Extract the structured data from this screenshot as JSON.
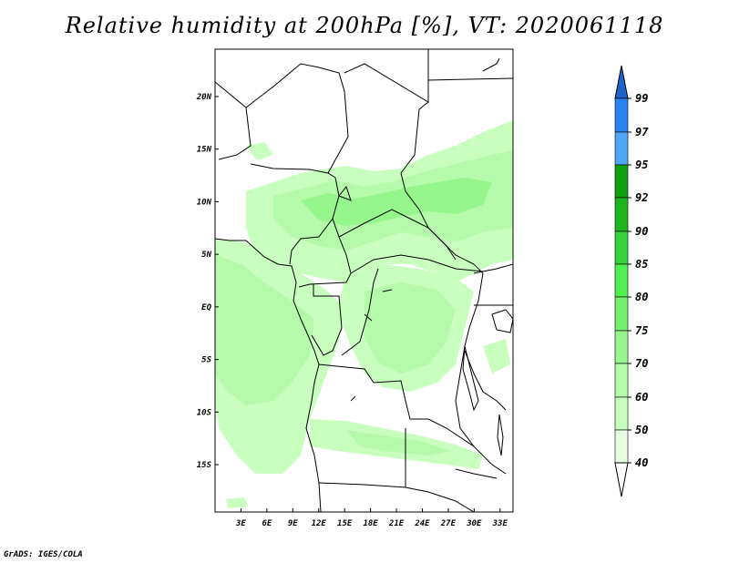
{
  "title": "Relative humidity at 200hPa [%], VT: 2020061118",
  "credit": "GrADS: IGES/COLA",
  "chart_data": {
    "type": "heatmap",
    "variable": "Relative humidity at 200hPa",
    "unit": "%",
    "valid_time": "2020061118",
    "lon_range": [
      0,
      34.5
    ],
    "lat_range": [
      -19.5,
      24.5
    ],
    "x_ticks": [
      "3E",
      "6E",
      "9E",
      "12E",
      "15E",
      "18E",
      "21E",
      "24E",
      "27E",
      "30E",
      "33E"
    ],
    "x_tick_values": [
      3,
      6,
      9,
      12,
      15,
      18,
      21,
      24,
      27,
      30,
      33
    ],
    "y_ticks": [
      "20N",
      "15N",
      "10N",
      "5N",
      "EQ",
      "5S",
      "10S",
      "15S"
    ],
    "y_tick_values": [
      20,
      15,
      10,
      5,
      0,
      -5,
      -10,
      -15
    ],
    "colorbar": {
      "levels": [
        "99",
        "97",
        "95",
        "92",
        "90",
        "85",
        "80",
        "75",
        "70",
        "60",
        "50",
        "40"
      ],
      "level_values": [
        99,
        97,
        95,
        92,
        90,
        85,
        80,
        75,
        70,
        60,
        50,
        40
      ],
      "colors": [
        "#1e64c8",
        "#2882f0",
        "#50a5f5",
        "#0fa00f",
        "#1eb41e",
        "#37d23c",
        "#50f050",
        "#73f06e",
        "#96f58c",
        "#b4faaa",
        "#c8ffbe",
        "#e6ffe1",
        "#ffffff"
      ]
    }
  }
}
